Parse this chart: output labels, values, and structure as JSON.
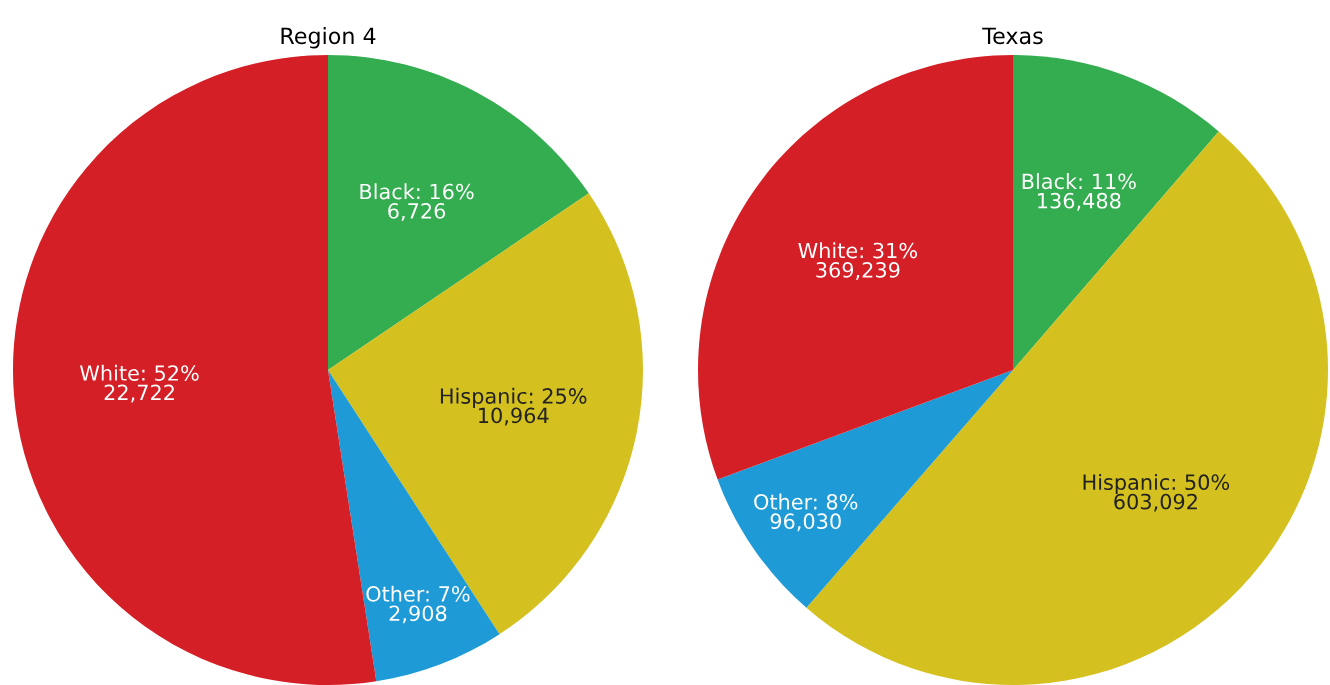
{
  "chart_data": [
    {
      "type": "pie",
      "title": "Region 4",
      "categories": [
        "Black",
        "Hispanic",
        "Other",
        "White"
      ],
      "values": [
        6726,
        10964,
        2908,
        22722
      ],
      "colors": [
        "#33ad4f",
        "#d4c01e",
        "#1e9ad6",
        "#d41f26"
      ],
      "value_labels": [
        "16%\n6,726",
        "25%\n10,964",
        "7%\n2,908",
        "52%\n22,722"
      ],
      "legend": false
    },
    {
      "type": "pie",
      "title": "Texas",
      "categories": [
        "Black",
        "Hispanic",
        "Other",
        "White"
      ],
      "values": [
        136488,
        603092,
        96030,
        369239
      ],
      "colors": [
        "#33ad4f",
        "#d4c01e",
        "#1e9ad6",
        "#d41f26"
      ],
      "value_labels": [
        "11%\n136,488",
        "50%\n603,092",
        "8%\n96,030",
        "31%\n369,239"
      ],
      "legend": false
    }
  ]
}
